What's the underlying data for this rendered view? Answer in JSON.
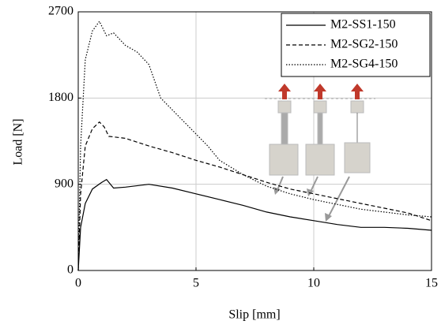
{
  "chart_data": {
    "type": "line",
    "xlabel": "Slip [mm]",
    "ylabel": "Load [N]",
    "xlim": [
      0,
      15
    ],
    "xticks": [
      0,
      5,
      10,
      15
    ],
    "ylim": [
      0,
      2700
    ],
    "yticks": [
      0,
      900,
      1800,
      2700
    ],
    "grid": true,
    "legend": "upper right",
    "series": [
      {
        "name": "M2-SS1-150",
        "color": "#000000",
        "linestyle": "solid",
        "x": [
          0,
          0.1,
          0.3,
          0.6,
          1.0,
          1.2,
          1.5,
          2,
          3,
          4,
          5,
          6,
          7,
          8,
          9,
          10,
          11,
          12,
          13,
          14,
          15
        ],
        "values": [
          0,
          450,
          700,
          850,
          920,
          950,
          860,
          870,
          900,
          860,
          800,
          740,
          680,
          610,
          560,
          520,
          480,
          450,
          450,
          440,
          420
        ]
      },
      {
        "name": "M2-SG2-150",
        "color": "#000000",
        "linestyle": "dashed",
        "x": [
          0,
          0.1,
          0.3,
          0.6,
          0.9,
          1.1,
          1.3,
          2,
          3,
          4,
          5,
          6,
          7,
          8,
          9,
          10,
          11,
          12,
          13,
          14,
          15
        ],
        "values": [
          0,
          800,
          1300,
          1480,
          1550,
          1500,
          1400,
          1380,
          1300,
          1230,
          1150,
          1080,
          1000,
          920,
          850,
          800,
          750,
          700,
          650,
          600,
          520
        ]
      },
      {
        "name": "M2-SG4-150",
        "color": "#000000",
        "linestyle": "dotted",
        "x": [
          0,
          0.1,
          0.3,
          0.6,
          0.9,
          1.2,
          1.5,
          2,
          2.5,
          3,
          3.5,
          4.5,
          5.5,
          6,
          7,
          8,
          9,
          10,
          11,
          12,
          13,
          14,
          15
        ],
        "values": [
          0,
          1300,
          2200,
          2500,
          2600,
          2450,
          2480,
          2350,
          2280,
          2150,
          1800,
          1550,
          1300,
          1150,
          1000,
          880,
          800,
          740,
          690,
          640,
          610,
          580,
          560
        ]
      }
    ]
  }
}
